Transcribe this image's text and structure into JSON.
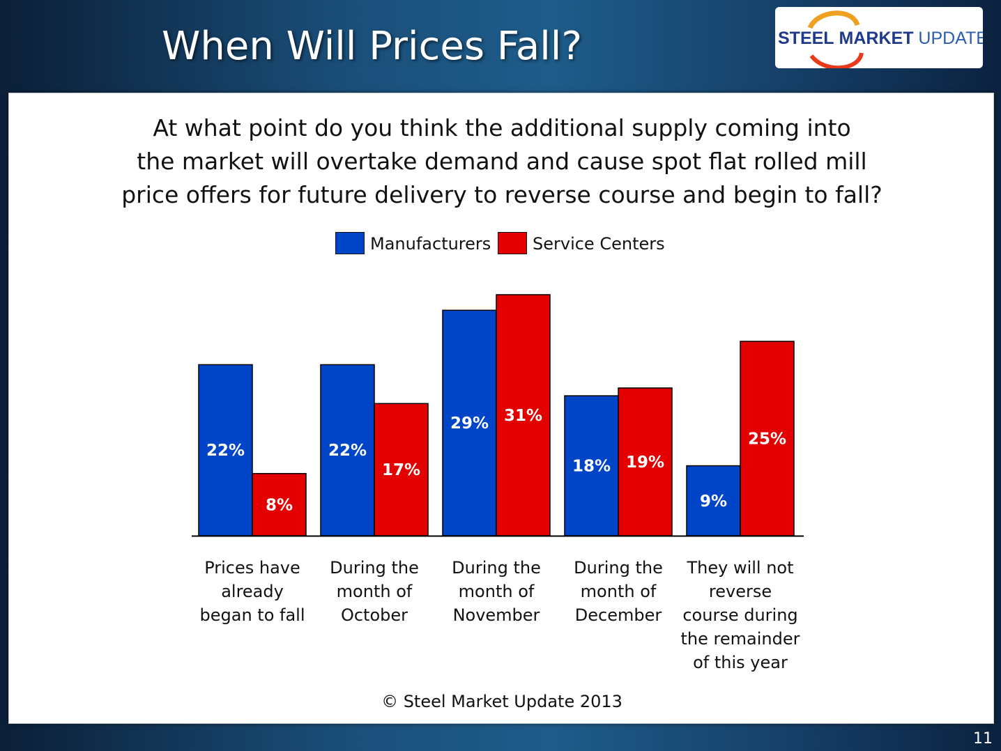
{
  "slide": {
    "title": "When Will Prices Fall?",
    "page_number": "11",
    "logo": {
      "word1": "STEEL",
      "word2": "MARKET",
      "word3": "UPDATE"
    },
    "question_lines": [
      "At what point do you think the additional supply coming into",
      "the market will overtake demand and cause spot flat rolled mill",
      "price offers for future delivery to reverse course and begin to fall?"
    ],
    "footer": "© Steel Market Update 2013"
  },
  "colors": {
    "manufacturers": "#0044c8",
    "service_centers": "#e30000",
    "axis": "#000000"
  },
  "chart_data": {
    "type": "bar",
    "title": "At what point do you think the additional supply coming into the market will overtake demand and cause spot flat rolled mill price offers for future delivery to reverse course and begin to fall?",
    "categories": [
      [
        "Prices have",
        "already",
        "began to fall"
      ],
      [
        "During the",
        "month of",
        "October"
      ],
      [
        "During the",
        "month of",
        "November"
      ],
      [
        "During the",
        "month of",
        "December"
      ],
      [
        "They will not",
        "reverse",
        "course during",
        "the remainder",
        "of this year"
      ]
    ],
    "series": [
      {
        "name": "Manufacturers",
        "values": [
          22,
          22,
          29,
          18,
          9
        ],
        "labels": [
          "22%",
          "22%",
          "29%",
          "18%",
          "9%"
        ]
      },
      {
        "name": "Service Centers",
        "values": [
          8,
          17,
          31,
          19,
          25
        ],
        "labels": [
          "8%",
          "17%",
          "31%",
          "19%",
          "25%"
        ]
      }
    ],
    "ylim": [
      0,
      31
    ],
    "value_format": "percent",
    "legend_position": "top-center",
    "grid": false
  }
}
